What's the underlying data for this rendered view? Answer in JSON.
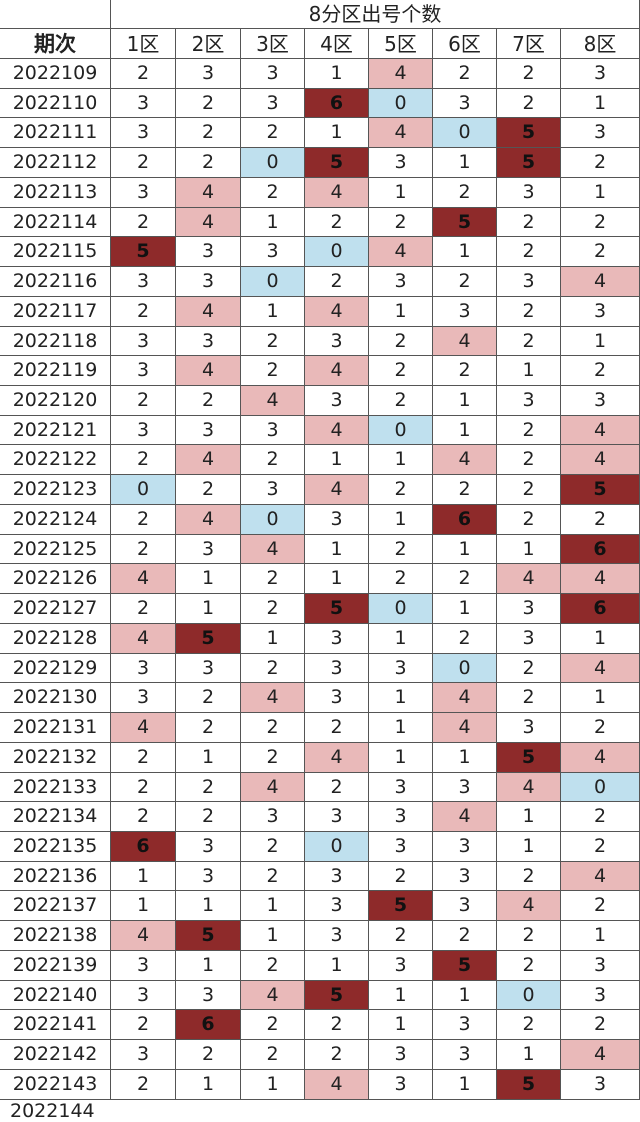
{
  "header": {
    "title": "8分区出号个数",
    "period_label": "期次",
    "zones": [
      "1区",
      "2区",
      "3区",
      "4区",
      "5区",
      "6区",
      "7区",
      "8区"
    ]
  },
  "rows": [
    {
      "period": "2022109",
      "values": [
        2,
        3,
        3,
        1,
        4,
        2,
        2,
        3
      ],
      "marks": [
        "",
        "",
        "",
        "",
        "L",
        "",
        "",
        ""
      ]
    },
    {
      "period": "2022110",
      "values": [
        3,
        2,
        3,
        6,
        0,
        3,
        2,
        1
      ],
      "marks": [
        "",
        "",
        "",
        "D",
        "B",
        "",
        "",
        ""
      ]
    },
    {
      "period": "2022111",
      "values": [
        3,
        2,
        2,
        1,
        4,
        0,
        5,
        3
      ],
      "marks": [
        "",
        "",
        "",
        "",
        "L",
        "B",
        "D",
        ""
      ]
    },
    {
      "period": "2022112",
      "values": [
        2,
        2,
        0,
        5,
        3,
        1,
        5,
        2
      ],
      "marks": [
        "",
        "",
        "B",
        "D",
        "",
        "",
        "D",
        ""
      ]
    },
    {
      "period": "2022113",
      "values": [
        3,
        4,
        2,
        4,
        1,
        2,
        3,
        1
      ],
      "marks": [
        "",
        "L",
        "",
        "L",
        "",
        "",
        "",
        ""
      ]
    },
    {
      "period": "2022114",
      "values": [
        2,
        4,
        1,
        2,
        2,
        5,
        2,
        2
      ],
      "marks": [
        "",
        "L",
        "",
        "",
        "",
        "D",
        "",
        ""
      ]
    },
    {
      "period": "2022115",
      "values": [
        5,
        3,
        3,
        0,
        4,
        1,
        2,
        2
      ],
      "marks": [
        "D",
        "",
        "",
        "B",
        "L",
        "",
        "",
        ""
      ]
    },
    {
      "period": "2022116",
      "values": [
        3,
        3,
        0,
        2,
        3,
        2,
        3,
        4
      ],
      "marks": [
        "",
        "",
        "B",
        "",
        "",
        "",
        "",
        "L"
      ]
    },
    {
      "period": "2022117",
      "values": [
        2,
        4,
        1,
        4,
        1,
        3,
        2,
        3
      ],
      "marks": [
        "",
        "L",
        "",
        "L",
        "",
        "",
        "",
        ""
      ]
    },
    {
      "period": "2022118",
      "values": [
        3,
        3,
        2,
        3,
        2,
        4,
        2,
        1
      ],
      "marks": [
        "",
        "",
        "",
        "",
        "",
        "L",
        "",
        ""
      ]
    },
    {
      "period": "2022119",
      "values": [
        3,
        4,
        2,
        4,
        2,
        2,
        1,
        2
      ],
      "marks": [
        "",
        "L",
        "",
        "L",
        "",
        "",
        "",
        ""
      ]
    },
    {
      "period": "2022120",
      "values": [
        2,
        2,
        4,
        3,
        2,
        1,
        3,
        3
      ],
      "marks": [
        "",
        "",
        "L",
        "",
        "",
        "",
        "",
        ""
      ]
    },
    {
      "period": "2022121",
      "values": [
        3,
        3,
        3,
        4,
        0,
        1,
        2,
        4
      ],
      "marks": [
        "",
        "",
        "",
        "L",
        "B",
        "",
        "",
        "L"
      ]
    },
    {
      "period": "2022122",
      "values": [
        2,
        4,
        2,
        1,
        1,
        4,
        2,
        4
      ],
      "marks": [
        "",
        "L",
        "",
        "",
        "",
        "L",
        "",
        "L"
      ]
    },
    {
      "period": "2022123",
      "values": [
        0,
        2,
        3,
        4,
        2,
        2,
        2,
        5
      ],
      "marks": [
        "B",
        "",
        "",
        "L",
        "",
        "",
        "",
        "D"
      ]
    },
    {
      "period": "2022124",
      "values": [
        2,
        4,
        0,
        3,
        1,
        6,
        2,
        2
      ],
      "marks": [
        "",
        "L",
        "B",
        "",
        "",
        "D",
        "",
        ""
      ]
    },
    {
      "period": "2022125",
      "values": [
        2,
        3,
        4,
        1,
        2,
        1,
        1,
        6
      ],
      "marks": [
        "",
        "",
        "L",
        "",
        "",
        "",
        "",
        "D"
      ]
    },
    {
      "period": "2022126",
      "values": [
        4,
        1,
        2,
        1,
        2,
        2,
        4,
        4
      ],
      "marks": [
        "L",
        "",
        "",
        "",
        "",
        "",
        "L",
        "L"
      ]
    },
    {
      "period": "2022127",
      "values": [
        2,
        1,
        2,
        5,
        0,
        1,
        3,
        6
      ],
      "marks": [
        "",
        "",
        "",
        "D",
        "B",
        "",
        "",
        "D"
      ]
    },
    {
      "period": "2022128",
      "values": [
        4,
        5,
        1,
        3,
        1,
        2,
        3,
        1
      ],
      "marks": [
        "L",
        "D",
        "",
        "",
        "",
        "",
        "",
        ""
      ]
    },
    {
      "period": "2022129",
      "values": [
        3,
        3,
        2,
        3,
        3,
        0,
        2,
        4
      ],
      "marks": [
        "",
        "",
        "",
        "",
        "",
        "B",
        "",
        "L"
      ]
    },
    {
      "period": "2022130",
      "values": [
        3,
        2,
        4,
        3,
        1,
        4,
        2,
        1
      ],
      "marks": [
        "",
        "",
        "L",
        "",
        "",
        "L",
        "",
        ""
      ]
    },
    {
      "period": "2022131",
      "values": [
        4,
        2,
        2,
        2,
        1,
        4,
        3,
        2
      ],
      "marks": [
        "L",
        "",
        "",
        "",
        "",
        "L",
        "",
        ""
      ]
    },
    {
      "period": "2022132",
      "values": [
        2,
        1,
        2,
        4,
        1,
        1,
        5,
        4
      ],
      "marks": [
        "",
        "",
        "",
        "L",
        "",
        "",
        "D",
        "L"
      ]
    },
    {
      "period": "2022133",
      "values": [
        2,
        2,
        4,
        2,
        3,
        3,
        4,
        0
      ],
      "marks": [
        "",
        "",
        "L",
        "",
        "",
        "",
        "L",
        "B"
      ]
    },
    {
      "period": "2022134",
      "values": [
        2,
        2,
        3,
        3,
        3,
        4,
        1,
        2
      ],
      "marks": [
        "",
        "",
        "",
        "",
        "",
        "L",
        "",
        ""
      ]
    },
    {
      "period": "2022135",
      "values": [
        6,
        3,
        2,
        0,
        3,
        3,
        1,
        2
      ],
      "marks": [
        "D",
        "",
        "",
        "B",
        "",
        "",
        "",
        ""
      ]
    },
    {
      "period": "2022136",
      "values": [
        1,
        3,
        2,
        3,
        2,
        3,
        2,
        4
      ],
      "marks": [
        "",
        "",
        "",
        "",
        "",
        "",
        "",
        "L"
      ]
    },
    {
      "period": "2022137",
      "values": [
        1,
        1,
        1,
        3,
        5,
        3,
        4,
        2
      ],
      "marks": [
        "",
        "",
        "",
        "",
        "D",
        "",
        "L",
        ""
      ]
    },
    {
      "period": "2022138",
      "values": [
        4,
        5,
        1,
        3,
        2,
        2,
        2,
        1
      ],
      "marks": [
        "L",
        "D",
        "",
        "",
        "",
        "",
        "",
        ""
      ]
    },
    {
      "period": "2022139",
      "values": [
        3,
        1,
        2,
        1,
        3,
        5,
        2,
        3
      ],
      "marks": [
        "",
        "",
        "",
        "",
        "",
        "D",
        "",
        ""
      ]
    },
    {
      "period": "2022140",
      "values": [
        3,
        3,
        4,
        5,
        1,
        1,
        0,
        3
      ],
      "marks": [
        "",
        "",
        "L",
        "D",
        "",
        "",
        "B",
        ""
      ]
    },
    {
      "period": "2022141",
      "values": [
        2,
        6,
        2,
        2,
        1,
        3,
        2,
        2
      ],
      "marks": [
        "",
        "D",
        "",
        "",
        "",
        "",
        "",
        ""
      ]
    },
    {
      "period": "2022142",
      "values": [
        3,
        2,
        2,
        2,
        3,
        3,
        1,
        4
      ],
      "marks": [
        "",
        "",
        "",
        "",
        "",
        "",
        "",
        "L"
      ]
    },
    {
      "period": "2022143",
      "values": [
        2,
        1,
        1,
        4,
        3,
        1,
        5,
        3
      ],
      "marks": [
        "",
        "",
        "",
        "L",
        "",
        "",
        "D",
        ""
      ]
    }
  ],
  "partial_row": {
    "period": "2022144"
  },
  "colors": {
    "light": "#e9b9b9",
    "dark": "#8e2a2a",
    "blue": "#bfe0ee"
  }
}
